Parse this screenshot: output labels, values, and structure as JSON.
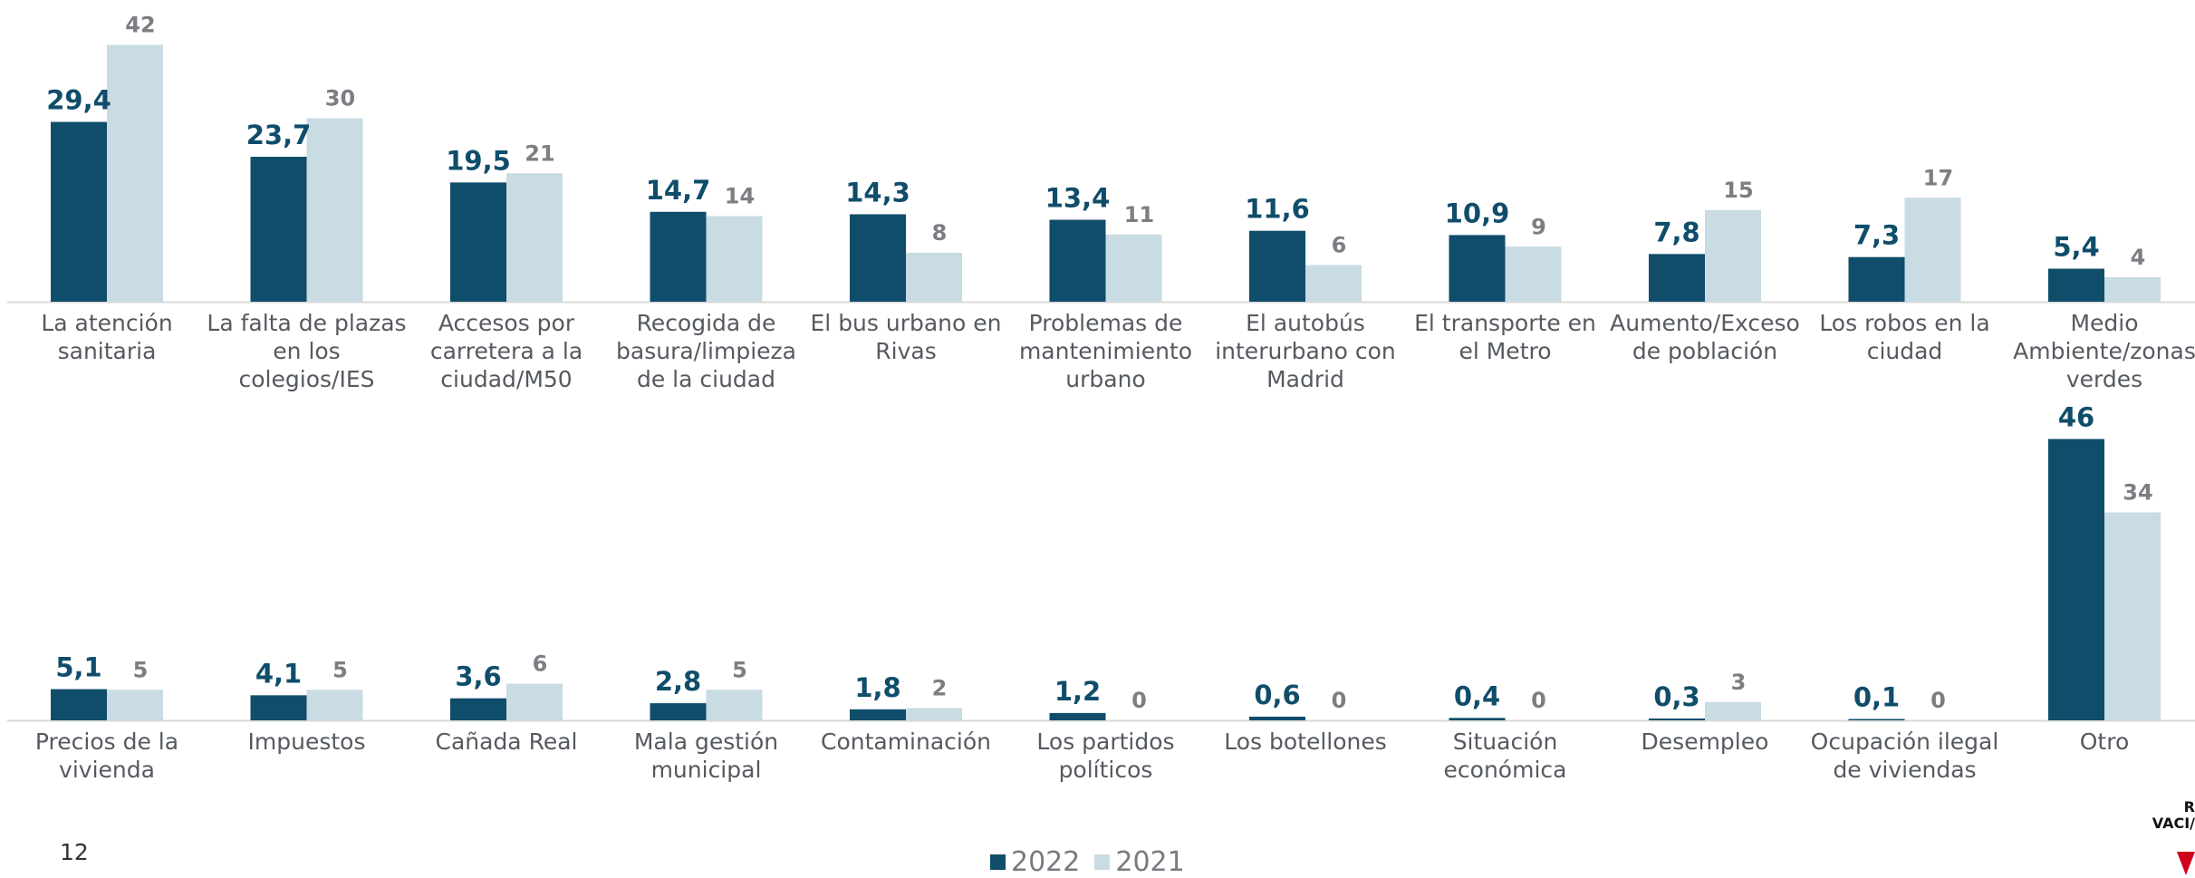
{
  "page_number": "12",
  "logo_text": [
    "R",
    "VACI/"
  ],
  "colors": {
    "series_2022": "#0f4d6b",
    "series_2021": "#c9dbe3",
    "axis": "#d9d9d9"
  },
  "legend": [
    {
      "label": "2022",
      "color": "#0f4d6b"
    },
    {
      "label": "2021",
      "color": "#c9dbe3"
    }
  ],
  "chart_data": [
    {
      "type": "bar",
      "title": "",
      "xlabel": "",
      "ylabel": "",
      "ylim": [
        0,
        46
      ],
      "categories": [
        [
          "La atención",
          "sanitaria"
        ],
        [
          "La falta de plazas",
          "en los",
          "colegios/IES"
        ],
        [
          "Accesos por",
          "carretera a la",
          "ciudad/M50"
        ],
        [
          "Recogida de",
          "basura/limpieza",
          "de la ciudad"
        ],
        [
          "El bus urbano en",
          "Rivas"
        ],
        [
          "Problemas de",
          "mantenimiento",
          "urbano"
        ],
        [
          "El autobús",
          "interurbano con",
          "Madrid"
        ],
        [
          "El transporte en",
          "el Metro"
        ],
        [
          "Aumento/Exceso",
          "de población"
        ],
        [
          "Los robos en la",
          "ciudad"
        ],
        [
          "Medio",
          "Ambiente/zonas",
          "verdes"
        ]
      ],
      "series": [
        {
          "name": "2022",
          "values": [
            29.4,
            23.7,
            19.5,
            14.7,
            14.3,
            13.4,
            11.6,
            10.9,
            7.8,
            7.3,
            5.4
          ],
          "labels": [
            "29,4",
            "23,7",
            "19,5",
            "14,7",
            "14,3",
            "13,4",
            "11,6",
            "10,9",
            "7,8",
            "7,3",
            "5,4"
          ]
        },
        {
          "name": "2021",
          "values": [
            42,
            30,
            21,
            14,
            8,
            11,
            6,
            9,
            15,
            17,
            4
          ],
          "labels": [
            "42",
            "30",
            "21",
            "14",
            "8",
            "11",
            "6",
            "9",
            "15",
            "17",
            "4"
          ]
        }
      ]
    },
    {
      "type": "bar",
      "title": "",
      "xlabel": "",
      "ylabel": "",
      "ylim": [
        0,
        46
      ],
      "categories": [
        [
          "Precios de la",
          "vivienda"
        ],
        [
          "Impuestos"
        ],
        [
          "Cañada Real"
        ],
        [
          "Mala gestión",
          "municipal"
        ],
        [
          "Contaminación"
        ],
        [
          "Los partidos",
          "políticos"
        ],
        [
          "Los botellones"
        ],
        [
          "Situación",
          "económica"
        ],
        [
          "Desempleo"
        ],
        [
          "Ocupación ilegal",
          "de viviendas"
        ],
        [
          "Otro"
        ]
      ],
      "series": [
        {
          "name": "2022",
          "values": [
            5.1,
            4.1,
            3.6,
            2.8,
            1.8,
            1.2,
            0.6,
            0.4,
            0.3,
            0.1,
            46
          ],
          "labels": [
            "5,1",
            "4,1",
            "3,6",
            "2,8",
            "1,8",
            "1,2",
            "0,6",
            "0,4",
            "0,3",
            "0,1",
            "46"
          ]
        },
        {
          "name": "2021",
          "values": [
            5,
            5,
            6,
            5,
            2,
            0,
            0,
            0,
            3,
            0,
            34
          ],
          "labels": [
            "5",
            "5",
            "6",
            "5",
            "2",
            "0",
            "0",
            "0",
            "3",
            "0",
            "34"
          ]
        }
      ]
    }
  ]
}
